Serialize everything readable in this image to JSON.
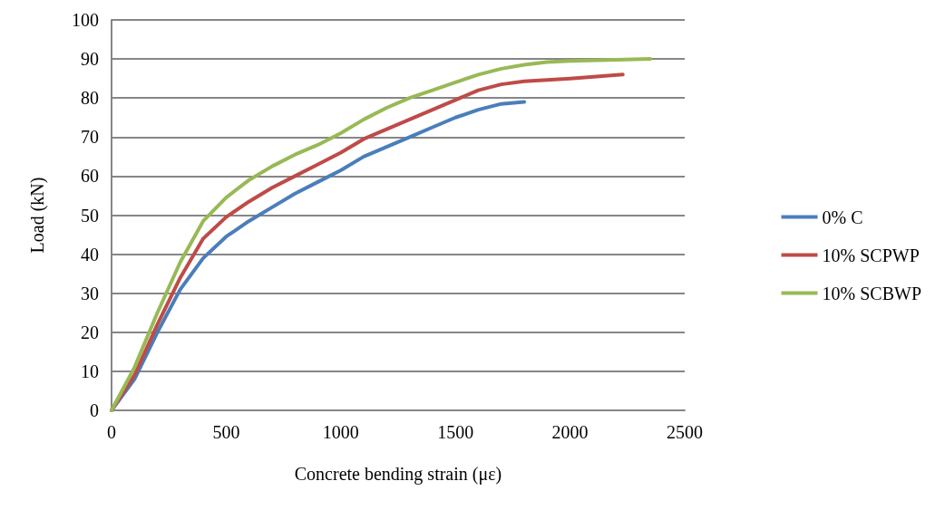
{
  "chart_data": {
    "type": "line",
    "xlabel": "Concrete bending strain (με)",
    "ylabel": "Load (kN)",
    "xlim": [
      0,
      2500
    ],
    "xticks": [
      0,
      500,
      1000,
      1500,
      2000,
      2500
    ],
    "ylim": [
      0,
      100
    ],
    "yticks": [
      0,
      10,
      20,
      30,
      40,
      50,
      60,
      70,
      80,
      90,
      100
    ],
    "grid": "y",
    "legend": "right",
    "marker": "none",
    "line_style": "solid",
    "series": [
      {
        "name": "0% C",
        "color": "#4a7ebb",
        "x": [
          0,
          100,
          200,
          300,
          400,
          500,
          600,
          700,
          800,
          900,
          1000,
          1100,
          1200,
          1300,
          1400,
          1500,
          1600,
          1700,
          1800
        ],
        "values": [
          0,
          8,
          20,
          31,
          39,
          44.5,
          48.5,
          52,
          55.5,
          58.5,
          61.5,
          65,
          67.5,
          70,
          72.5,
          75,
          77,
          78.5,
          79
        ]
      },
      {
        "name": "10% SCPWP",
        "color": "#be4b48",
        "x": [
          0,
          100,
          200,
          300,
          400,
          500,
          600,
          700,
          800,
          900,
          1000,
          1100,
          1200,
          1300,
          1400,
          1500,
          1600,
          1700,
          1800,
          2000,
          2230
        ],
        "values": [
          0,
          9,
          22,
          34,
          44,
          49.5,
          53.5,
          57,
          60,
          63,
          66,
          69.5,
          72,
          74.5,
          77,
          79.5,
          82,
          83.5,
          84.3,
          85,
          86
        ]
      },
      {
        "name": "10% SCBWP",
        "color": "#98b954",
        "x": [
          0,
          100,
          200,
          300,
          400,
          500,
          600,
          700,
          800,
          900,
          1000,
          1100,
          1200,
          1300,
          1400,
          1500,
          1600,
          1700,
          1800,
          1900,
          2000,
          2200,
          2350
        ],
        "values": [
          0,
          11,
          25,
          38,
          48.5,
          54.5,
          59,
          62.5,
          65.5,
          68,
          71,
          74.5,
          77.5,
          80,
          82,
          84,
          86,
          87.5,
          88.5,
          89.2,
          89.5,
          89.8,
          90
        ]
      }
    ]
  }
}
